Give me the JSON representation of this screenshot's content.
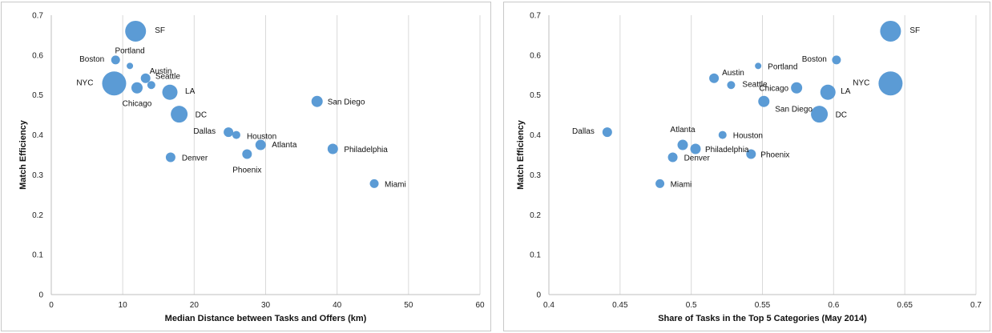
{
  "chart_data": [
    {
      "type": "scatter",
      "title": "",
      "xlabel": "Median Distance between Tasks and Offers (km)",
      "ylabel": "Match Efficiency",
      "xlim": [
        0,
        60
      ],
      "ylim": [
        0,
        0.7
      ],
      "x_ticks": [
        "0",
        "10",
        "20",
        "30",
        "40",
        "50",
        "60"
      ],
      "y_ticks": [
        "0",
        "0.1",
        "0.2",
        "0.3",
        "0.4",
        "0.5",
        "0.6",
        "0.7"
      ],
      "grid": "vertical",
      "bubble": true,
      "points": [
        {
          "label": "SF",
          "x": 11.8,
          "y": 0.66,
          "size": 26
        },
        {
          "label": "Portland",
          "x": 11.0,
          "y": 0.573,
          "size": 8
        },
        {
          "label": "Boston",
          "x": 9.0,
          "y": 0.588,
          "size": 11
        },
        {
          "label": "Austin",
          "x": 13.2,
          "y": 0.542,
          "size": 12
        },
        {
          "label": "NYC",
          "x": 8.8,
          "y": 0.529,
          "size": 30
        },
        {
          "label": "Seattle",
          "x": 14.0,
          "y": 0.525,
          "size": 10
        },
        {
          "label": "Chicago",
          "x": 12.0,
          "y": 0.518,
          "size": 14
        },
        {
          "label": "LA",
          "x": 16.6,
          "y": 0.507,
          "size": 19
        },
        {
          "label": "DC",
          "x": 17.9,
          "y": 0.452,
          "size": 21
        },
        {
          "label": "San Diego",
          "x": 37.2,
          "y": 0.484,
          "size": 14
        },
        {
          "label": "Dallas",
          "x": 24.8,
          "y": 0.407,
          "size": 12
        },
        {
          "label": "Houston",
          "x": 25.9,
          "y": 0.4,
          "size": 10
        },
        {
          "label": "Atlanta",
          "x": 29.3,
          "y": 0.375,
          "size": 13
        },
        {
          "label": "Philadelphia",
          "x": 39.4,
          "y": 0.365,
          "size": 13
        },
        {
          "label": "Denver",
          "x": 16.7,
          "y": 0.344,
          "size": 12
        },
        {
          "label": "Phoenix",
          "x": 27.4,
          "y": 0.352,
          "size": 12
        },
        {
          "label": "Miami",
          "x": 45.2,
          "y": 0.278,
          "size": 11
        }
      ]
    },
    {
      "type": "scatter",
      "title": "",
      "xlabel": "Share of Tasks in the Top 5 Categories (May 2014)",
      "ylabel": "Match Efficiency",
      "xlim": [
        0.4,
        0.7
      ],
      "ylim": [
        0,
        0.7
      ],
      "x_ticks": [
        "0.4",
        "0.45",
        "0.5",
        "0.55",
        "0.6",
        "0.65",
        "0.7"
      ],
      "y_ticks": [
        "0",
        "0.1",
        "0.2",
        "0.3",
        "0.4",
        "0.5",
        "0.6",
        "0.7"
      ],
      "grid": "vertical",
      "bubble": true,
      "points": [
        {
          "label": "SF",
          "x": 0.64,
          "y": 0.66,
          "size": 26
        },
        {
          "label": "Boston",
          "x": 0.602,
          "y": 0.588,
          "size": 11
        },
        {
          "label": "Portland",
          "x": 0.547,
          "y": 0.573,
          "size": 8
        },
        {
          "label": "Austin",
          "x": 0.516,
          "y": 0.542,
          "size": 12
        },
        {
          "label": "Seattle",
          "x": 0.528,
          "y": 0.525,
          "size": 10
        },
        {
          "label": "Chicago",
          "x": 0.574,
          "y": 0.518,
          "size": 14
        },
        {
          "label": "NYC",
          "x": 0.64,
          "y": 0.529,
          "size": 30
        },
        {
          "label": "LA",
          "x": 0.596,
          "y": 0.507,
          "size": 19
        },
        {
          "label": "San Diego",
          "x": 0.551,
          "y": 0.484,
          "size": 14
        },
        {
          "label": "DC",
          "x": 0.59,
          "y": 0.452,
          "size": 21
        },
        {
          "label": "Dallas",
          "x": 0.441,
          "y": 0.407,
          "size": 12
        },
        {
          "label": "Houston",
          "x": 0.522,
          "y": 0.4,
          "size": 10
        },
        {
          "label": "Atlanta",
          "x": 0.494,
          "y": 0.375,
          "size": 13
        },
        {
          "label": "Philadelphia",
          "x": 0.503,
          "y": 0.365,
          "size": 13
        },
        {
          "label": "Denver",
          "x": 0.487,
          "y": 0.344,
          "size": 12
        },
        {
          "label": "Phoenix",
          "x": 0.542,
          "y": 0.352,
          "size": 12
        },
        {
          "label": "Miami",
          "x": 0.478,
          "y": 0.278,
          "size": 11
        }
      ]
    }
  ],
  "colors": {
    "bubble": "#5b9bd5",
    "grid": "#d9d9d9"
  }
}
